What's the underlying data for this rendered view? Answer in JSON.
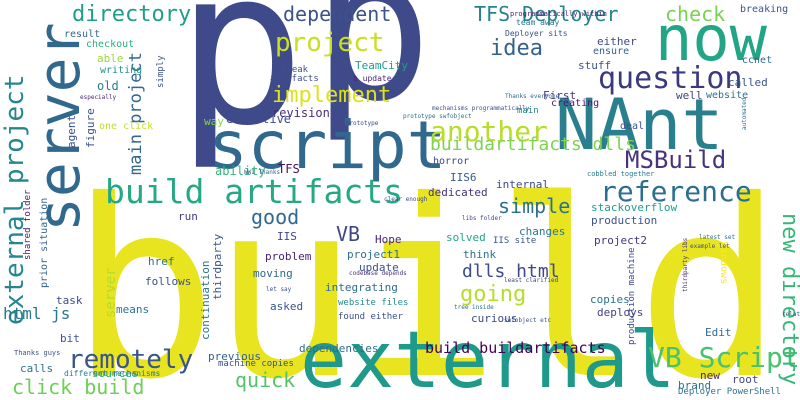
{
  "words": [
    {
      "text": "build",
      "color": "#e8e41f"
    },
    {
      "text": "p",
      "color": "#3f4a8a"
    },
    {
      "text": "p",
      "color": "#3f4a8a"
    },
    {
      "text": "external",
      "color": "#1f9a8a"
    },
    {
      "text": "NAnt",
      "color": "#2a7f8e"
    },
    {
      "text": "script",
      "color": "#31688e"
    },
    {
      "text": "server",
      "color": "#31688e"
    },
    {
      "text": "now",
      "color": "#21a585"
    },
    {
      "text": "build artifacts",
      "color": "#26a884"
    },
    {
      "text": "project",
      "color": "#c9e020"
    },
    {
      "text": "question",
      "color": "#3b3a7e"
    },
    {
      "text": "another",
      "color": "#b8de29"
    },
    {
      "text": "reference",
      "color": "#2c6e8e"
    },
    {
      "text": "external project",
      "color": "#24878e"
    },
    {
      "text": "VB Script",
      "color": "#4ac16d"
    },
    {
      "text": "remotely",
      "color": "#3a548c"
    },
    {
      "text": "directory",
      "color": "#1f9e89"
    },
    {
      "text": "dependent",
      "color": "#3b528b"
    },
    {
      "text": "TFS Deployer",
      "color": "#25838e"
    },
    {
      "text": "check",
      "color": "#7ad151"
    },
    {
      "text": "idea",
      "color": "#33638d"
    },
    {
      "text": "implement",
      "color": "#dde318"
    },
    {
      "text": "MSBuild",
      "color": "#46327e"
    },
    {
      "text": "buildartifacts dlls",
      "color": "#7fd34e"
    },
    {
      "text": "going",
      "color": "#b5de2b"
    },
    {
      "text": "simple",
      "color": "#2d708e"
    },
    {
      "text": "new directory",
      "color": "#35b779"
    },
    {
      "text": "main project",
      "color": "#31688e"
    },
    {
      "text": "click build",
      "color": "#6ece58"
    },
    {
      "text": "quick",
      "color": "#52c569"
    },
    {
      "text": "good",
      "color": "#30698e"
    },
    {
      "text": "dlls html",
      "color": "#3e4a89"
    },
    {
      "text": "VB",
      "color": "#3f4788"
    },
    {
      "text": "build buildartifacts",
      "color": "#440154"
    },
    {
      "text": "html js",
      "color": "#2a788e"
    },
    {
      "text": "server",
      "color": "#b2dd2d"
    },
    {
      "text": "revision",
      "color": "#472d7b"
    },
    {
      "text": "TeamCity",
      "color": "#1fa088"
    },
    {
      "text": "effective",
      "color": "#3e4c8a"
    },
    {
      "text": "way",
      "color": "#84d44b"
    },
    {
      "text": "old",
      "color": "#27808e"
    },
    {
      "text": "writing",
      "color": "#21918c"
    },
    {
      "text": "able",
      "color": "#9bd93c"
    },
    {
      "text": "checkout",
      "color": "#29af7f"
    },
    {
      "text": "result",
      "color": "#31688e"
    },
    {
      "text": "one click",
      "color": "#bddf26"
    },
    {
      "text": "TFS",
      "color": "#471063"
    },
    {
      "text": "ability",
      "color": "#31b57b"
    },
    {
      "text": "break",
      "color": "#3b528b"
    },
    {
      "text": "artifacts",
      "color": "#3c4f8a"
    },
    {
      "text": "b update",
      "color": "#482878"
    },
    {
      "text": "stuff",
      "color": "#3b528b"
    },
    {
      "text": "either",
      "color": "#3e4a89"
    },
    {
      "text": "ensure",
      "color": "#34618d"
    },
    {
      "text": "ccnet",
      "color": "#31678e"
    },
    {
      "text": "called",
      "color": "#3a548c"
    },
    {
      "text": "breaking",
      "color": "#39558c"
    },
    {
      "text": "website",
      "color": "#2c718e"
    },
    {
      "text": "well",
      "color": "#414287"
    },
    {
      "text": "First",
      "color": "#46327e"
    },
    {
      "text": "creating",
      "color": "#48186a"
    },
    {
      "text": "main",
      "color": "#26828e"
    },
    {
      "text": "deal",
      "color": "#3b528b"
    },
    {
      "text": "Deployer sits",
      "color": "#3a538b"
    },
    {
      "text": "team away",
      "color": "#2b758e"
    },
    {
      "text": "internal",
      "color": "#3e4989"
    },
    {
      "text": "dedicated",
      "color": "#46307e"
    },
    {
      "text": "IIS6",
      "color": "#375b8d"
    },
    {
      "text": "horror",
      "color": "#3f4889"
    },
    {
      "text": "stackoverflow",
      "color": "#1f9e89"
    },
    {
      "text": "production",
      "color": "#3b528b"
    },
    {
      "text": "cobbled together",
      "color": "#287c8e"
    },
    {
      "text": "Windows",
      "color": "#fde725"
    },
    {
      "text": "Hope",
      "color": "#482475"
    },
    {
      "text": "project1",
      "color": "#2e6e8e"
    },
    {
      "text": "IIS",
      "color": "#3f4788"
    },
    {
      "text": "solved",
      "color": "#22a785"
    },
    {
      "text": "think",
      "color": "#2c728e"
    },
    {
      "text": "changes",
      "color": "#2a768e"
    },
    {
      "text": "project2",
      "color": "#46337e"
    },
    {
      "text": "IIS site",
      "color": "#3a548c"
    },
    {
      "text": "copies",
      "color": "#2e6f8e"
    },
    {
      "text": "update",
      "color": "#3c508b"
    },
    {
      "text": "problem",
      "color": "#481f70"
    },
    {
      "text": "moving",
      "color": "#31688e"
    },
    {
      "text": "integrating",
      "color": "#2f6b8e"
    },
    {
      "text": "asked",
      "color": "#39568c"
    },
    {
      "text": "found either",
      "color": "#3d4d8a"
    },
    {
      "text": "website files",
      "color": "#238a8d"
    },
    {
      "text": "curious",
      "color": "#3e4a89"
    },
    {
      "text": "deploys",
      "color": "#424086"
    },
    {
      "text": "Edit",
      "color": "#2e6d8e"
    },
    {
      "text": "href",
      "color": "#2c718e"
    },
    {
      "text": "follows",
      "color": "#3b528b"
    },
    {
      "text": "run",
      "color": "#433e85"
    },
    {
      "text": "means",
      "color": "#2c738e"
    },
    {
      "text": "task",
      "color": "#3e4989"
    },
    {
      "text": "bit",
      "color": "#3a548c"
    },
    {
      "text": "calls",
      "color": "#2c718e"
    },
    {
      "text": "sources",
      "color": "#25ab82"
    },
    {
      "text": "previous",
      "color": "#35608d"
    },
    {
      "text": "machine copies",
      "color": "#3d4e8a"
    },
    {
      "text": "different mechanisms",
      "color": "#2a788e"
    },
    {
      "text": "dependencies",
      "color": "#2e6e8e"
    },
    {
      "text": "continuation",
      "color": "#2d718e"
    },
    {
      "text": "thirdparty",
      "color": "#3a548c"
    },
    {
      "text": "new",
      "color": "#482878"
    },
    {
      "text": "root",
      "color": "#3f4788"
    },
    {
      "text": "brand",
      "color": "#2d708e"
    },
    {
      "text": "Deployer PowerShell",
      "color": "#2d718e"
    },
    {
      "text": "agent",
      "color": "#3c4f8a"
    },
    {
      "text": "figure",
      "color": "#3b528b"
    },
    {
      "text": "prior situation",
      "color": "#33638d"
    },
    {
      "text": "shared folder",
      "color": "#48186a"
    },
    {
      "text": "Thanks guys",
      "color": "#3b528b"
    },
    {
      "text": "simply",
      "color": "#3a548c"
    },
    {
      "text": "programmatically within",
      "color": "#482173"
    },
    {
      "text": "Thanks everyone",
      "color": "#31688e"
    },
    {
      "text": "mechanisms programmatically",
      "color": "#3b528b"
    },
    {
      "text": "prototype swfobject",
      "color": "#2d718e"
    },
    {
      "text": "WWI Thanks",
      "color": "#31688e"
    },
    {
      "text": "clear enough",
      "color": "#3e4a89"
    },
    {
      "text": "libs folder",
      "color": "#3f4788"
    },
    {
      "text": "codebase depends",
      "color": "#46327e"
    },
    {
      "text": "least clarified",
      "color": "#3f4788"
    },
    {
      "text": "tree inside",
      "color": "#2c718e"
    },
    {
      "text": "swfobject etc",
      "color": "#3a548c"
    },
    {
      "text": "latest set",
      "color": "#2e6f8e"
    },
    {
      "text": "example let",
      "color": "#3b528b"
    },
    {
      "text": "thirdparty libs",
      "color": "#482878"
    },
    {
      "text": "production machine",
      "color": "#3e4989"
    },
    {
      "text": "let say",
      "color": "#3b528b"
    },
    {
      "text": "eg prototype",
      "color": "#3f4788"
    },
    {
      "text": "especially",
      "color": "#482475"
    },
    {
      "text": "automated",
      "color": "#2c718e"
    },
    {
      "text": "related",
      "color": "#3a548c"
    }
  ]
}
